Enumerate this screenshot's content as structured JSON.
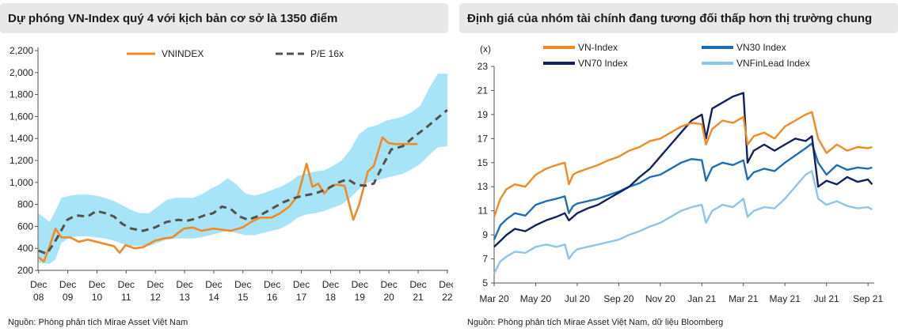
{
  "chart_data": [
    {
      "type": "line",
      "title": "Dự phóng VN-Index quý 4 với kịch bản cơ sở là 1350 điểm",
      "source": "Nguồn: Phòng phân tích Mirae Asset Việt Nam",
      "ylim": [
        200,
        2200
      ],
      "yticks": [
        200,
        400,
        600,
        800,
        1000,
        1200,
        1400,
        1600,
        1800,
        2000,
        2200
      ],
      "ytick_labels": [
        "200",
        "400",
        "600",
        "800",
        "1,000",
        "1,200",
        "1,400",
        "1,600",
        "1,800",
        "2,000",
        "2,200"
      ],
      "xlim": [
        2008.9,
        2022.95
      ],
      "xticks": [
        2008.92,
        2009.92,
        2010.92,
        2011.92,
        2012.92,
        2013.92,
        2014.92,
        2015.92,
        2016.92,
        2017.92,
        2018.92,
        2019.92,
        2020.92,
        2021.92,
        2022.92
      ],
      "xtick_labels": [
        [
          "Dec",
          "08"
        ],
        [
          "Dec",
          "09"
        ],
        [
          "Dec",
          "10"
        ],
        [
          "Dec",
          "11"
        ],
        [
          "Dec",
          "12"
        ],
        [
          "Dec",
          "13"
        ],
        [
          "Dec",
          "14"
        ],
        [
          "Dec",
          "15"
        ],
        [
          "Dec",
          "16"
        ],
        [
          "Dec",
          "17"
        ],
        [
          "Dec",
          "18"
        ],
        [
          "Dec",
          "19"
        ],
        [
          "Dec",
          "20"
        ],
        [
          "Dec",
          "21"
        ],
        [
          "Dec",
          "22"
        ]
      ],
      "grid": false,
      "legend": "top",
      "series": [
        {
          "name": "VNINDEX",
          "style": "solid",
          "color": "#f08a24",
          "x": [
            2008.92,
            2009.1,
            2009.3,
            2009.5,
            2009.7,
            2010.0,
            2010.3,
            2010.6,
            2010.9,
            2011.2,
            2011.5,
            2011.7,
            2011.9,
            2012.2,
            2012.5,
            2012.9,
            2013.2,
            2013.5,
            2013.9,
            2014.2,
            2014.5,
            2014.9,
            2015.2,
            2015.5,
            2015.9,
            2016.2,
            2016.5,
            2016.9,
            2017.2,
            2017.5,
            2017.8,
            2018.1,
            2018.3,
            2018.5,
            2018.7,
            2018.9,
            2019.1,
            2019.4,
            2019.7,
            2019.9,
            2020.2,
            2020.4,
            2020.7,
            2020.9,
            2021.1,
            2021.3,
            2021.6,
            2021.9
          ],
          "y": [
            320,
            280,
            420,
            580,
            500,
            500,
            460,
            480,
            460,
            440,
            420,
            360,
            430,
            400,
            410,
            470,
            490,
            500,
            580,
            590,
            560,
            580,
            570,
            560,
            590,
            640,
            680,
            680,
            720,
            780,
            880,
            1170,
            960,
            990,
            900,
            960,
            980,
            970,
            660,
            800,
            1100,
            1150,
            1410,
            1360,
            1350,
            1350,
            1350,
            1350
          ]
        },
        {
          "name": "P/E 16x",
          "style": "dashed",
          "color": "#555048",
          "x": [
            2008.92,
            2009.2,
            2009.5,
            2009.9,
            2010.2,
            2010.6,
            2010.9,
            2011.2,
            2011.5,
            2011.8,
            2012.1,
            2012.5,
            2012.9,
            2013.3,
            2013.7,
            2014.0,
            2014.3,
            2014.6,
            2014.9,
            2015.2,
            2015.5,
            2015.8,
            2016.1,
            2016.5,
            2016.9,
            2017.3,
            2017.7,
            2018.0,
            2018.4,
            2018.8,
            2019.2,
            2019.5,
            2019.8,
            2020.1,
            2020.4,
            2020.7,
            2021.0,
            2021.4,
            2021.8,
            2022.2,
            2022.6,
            2022.92
          ],
          "y": [
            380,
            350,
            470,
            660,
            700,
            690,
            740,
            720,
            690,
            620,
            580,
            560,
            590,
            640,
            660,
            650,
            670,
            700,
            720,
            780,
            760,
            690,
            660,
            700,
            760,
            820,
            860,
            880,
            900,
            940,
            1000,
            1030,
            980,
            970,
            990,
            1150,
            1300,
            1330,
            1420,
            1500,
            1590,
            1660
          ]
        }
      ],
      "band": {
        "name": "range",
        "color": "#a8e4f8",
        "x": [
          2008.92,
          2009.3,
          2009.5,
          2009.7,
          2010.0,
          2010.3,
          2010.6,
          2010.9,
          2011.2,
          2011.5,
          2011.8,
          2012.1,
          2012.4,
          2012.7,
          2013.0,
          2013.3,
          2013.6,
          2013.9,
          2014.2,
          2014.5,
          2014.8,
          2015.1,
          2015.4,
          2015.7,
          2016.0,
          2016.3,
          2016.6,
          2016.9,
          2017.2,
          2017.5,
          2017.8,
          2018.1,
          2018.4,
          2018.7,
          2019.0,
          2019.3,
          2019.6,
          2019.9,
          2020.2,
          2020.5,
          2020.8,
          2021.1,
          2021.4,
          2021.7,
          2022.0,
          2022.3,
          2022.6,
          2022.92
        ],
        "upper": [
          720,
          640,
          740,
          860,
          880,
          890,
          890,
          880,
          860,
          830,
          790,
          750,
          720,
          720,
          780,
          840,
          860,
          860,
          860,
          890,
          940,
          980,
          1040,
          980,
          900,
          880,
          900,
          930,
          960,
          1000,
          1060,
          1080,
          1100,
          1110,
          1150,
          1200,
          1300,
          1440,
          1500,
          1520,
          1560,
          1580,
          1600,
          1640,
          1700,
          1860,
          1990,
          1990
        ],
        "lower": [
          270,
          260,
          300,
          450,
          500,
          510,
          510,
          500,
          490,
          470,
          440,
          420,
          420,
          420,
          450,
          480,
          490,
          490,
          490,
          500,
          520,
          540,
          560,
          540,
          520,
          520,
          540,
          560,
          580,
          620,
          680,
          710,
          720,
          740,
          770,
          800,
          860,
          940,
          1000,
          1020,
          1040,
          1060,
          1080,
          1120,
          1170,
          1250,
          1320,
          1330
        ]
      }
    },
    {
      "type": "line",
      "title": "Định giá của nhóm tài chính đang tương đối thấp hơn thị trường chung",
      "source": "Nguồn: Phòng phân tích Mirae Asset Việt Nam, dữ liệu Bloomberg",
      "ylabel": "(x)",
      "ylim": [
        5,
        23
      ],
      "yticks": [
        5,
        7,
        9,
        11,
        13,
        15,
        17,
        19,
        21,
        23
      ],
      "xlim": [
        0,
        18.3
      ],
      "xticks": [
        0,
        2,
        4,
        6,
        8,
        10,
        12,
        14,
        16,
        18
      ],
      "xtick_labels": [
        "Mar 20",
        "May 20",
        "Jul 20",
        "Sep 20",
        "Nov 20",
        "Jan 21",
        "Mar 21",
        "May 21",
        "Jul 21",
        "Sep 21"
      ],
      "grid": false,
      "legend": "top",
      "series": [
        {
          "name": "VN-Index",
          "color": "#f08a24",
          "x": [
            0,
            0.3,
            0.6,
            1.0,
            1.5,
            2.0,
            2.5,
            3.0,
            3.4,
            3.6,
            3.8,
            4.0,
            4.5,
            5.0,
            5.5,
            6.0,
            6.5,
            7.0,
            7.5,
            8.0,
            8.5,
            9.0,
            9.5,
            10.0,
            10.2,
            10.5,
            11.0,
            11.5,
            12.0,
            12.2,
            12.5,
            13.0,
            13.5,
            14.0,
            14.5,
            15.0,
            15.3,
            15.6,
            16.0,
            16.5,
            17.0,
            17.5,
            18.0,
            18.2
          ],
          "y": [
            10.5,
            12.0,
            12.8,
            13.2,
            13.0,
            14.0,
            14.5,
            14.8,
            15.0,
            13.2,
            14.0,
            14.2,
            14.5,
            14.8,
            15.2,
            15.5,
            16.0,
            16.3,
            16.8,
            17.0,
            17.5,
            18.0,
            18.3,
            18.2,
            16.5,
            17.8,
            18.5,
            18.3,
            18.8,
            16.5,
            17.2,
            17.5,
            17.0,
            18.0,
            18.5,
            19.0,
            19.2,
            17.0,
            15.8,
            16.5,
            16.0,
            16.3,
            16.2,
            16.3
          ]
        },
        {
          "name": "VN30 Index",
          "color": "#1f6db5",
          "x": [
            0,
            0.3,
            0.6,
            1.0,
            1.5,
            2.0,
            2.5,
            3.0,
            3.4,
            3.6,
            3.8,
            4.0,
            4.5,
            5.0,
            5.5,
            6.0,
            6.5,
            7.0,
            7.5,
            8.0,
            8.5,
            9.0,
            9.5,
            10.0,
            10.2,
            10.5,
            11.0,
            11.5,
            12.0,
            12.2,
            12.5,
            13.0,
            13.5,
            14.0,
            14.5,
            15.0,
            15.3,
            15.6,
            16.0,
            16.5,
            17.0,
            17.5,
            18.0,
            18.2
          ],
          "y": [
            8.6,
            9.8,
            10.3,
            10.8,
            10.6,
            11.5,
            11.8,
            12.0,
            12.2,
            10.8,
            11.4,
            11.6,
            11.8,
            12.0,
            12.3,
            12.6,
            13.0,
            13.3,
            13.8,
            14.0,
            14.5,
            15.0,
            15.3,
            15.2,
            13.5,
            14.6,
            15.0,
            14.8,
            15.2,
            13.6,
            14.2,
            14.5,
            14.3,
            15.0,
            15.6,
            16.2,
            16.6,
            15.0,
            14.0,
            14.8,
            14.4,
            14.6,
            14.5,
            14.6
          ]
        },
        {
          "name": "VN70 Index",
          "color": "#12225e",
          "x": [
            0,
            0.3,
            0.6,
            1.0,
            1.5,
            2.0,
            2.5,
            3.0,
            3.4,
            3.6,
            3.8,
            4.0,
            4.5,
            5.0,
            5.5,
            6.0,
            6.5,
            7.0,
            7.5,
            8.0,
            8.5,
            9.0,
            9.5,
            10.0,
            10.2,
            10.5,
            11.0,
            11.5,
            12.0,
            12.2,
            12.5,
            13.0,
            13.5,
            14.0,
            14.5,
            15.0,
            15.3,
            15.6,
            16.0,
            16.5,
            17.0,
            17.5,
            18.0,
            18.2
          ],
          "y": [
            8.0,
            8.5,
            9.0,
            9.5,
            9.3,
            9.8,
            10.2,
            10.5,
            10.8,
            10.2,
            10.5,
            10.8,
            11.2,
            11.5,
            12.0,
            12.5,
            13.0,
            13.8,
            14.5,
            15.5,
            16.5,
            17.5,
            18.5,
            19.0,
            17.0,
            19.5,
            20.0,
            20.5,
            20.8,
            15.0,
            16.0,
            16.5,
            16.0,
            16.5,
            17.0,
            16.8,
            17.2,
            13.0,
            13.5,
            13.2,
            13.8,
            13.4,
            13.6,
            13.2
          ]
        },
        {
          "name": "VNFinLead Index",
          "color": "#8fc6e8",
          "x": [
            0,
            0.3,
            0.6,
            1.0,
            1.5,
            2.0,
            2.5,
            3.0,
            3.4,
            3.6,
            3.8,
            4.0,
            4.5,
            5.0,
            5.5,
            6.0,
            6.5,
            7.0,
            7.5,
            8.0,
            8.5,
            9.0,
            9.5,
            10.0,
            10.2,
            10.5,
            11.0,
            11.5,
            12.0,
            12.2,
            12.5,
            13.0,
            13.5,
            14.0,
            14.5,
            15.0,
            15.3,
            15.6,
            16.0,
            16.5,
            17.0,
            17.5,
            18.0,
            18.2
          ],
          "y": [
            5.8,
            6.8,
            7.2,
            7.6,
            7.5,
            8.0,
            8.2,
            8.0,
            8.2,
            7.0,
            7.5,
            7.8,
            8.0,
            8.2,
            8.4,
            8.6,
            9.0,
            9.3,
            9.7,
            10.0,
            10.5,
            11.0,
            11.3,
            11.5,
            10.0,
            11.0,
            11.5,
            11.3,
            12.0,
            10.5,
            11.0,
            11.3,
            11.2,
            12.0,
            13.0,
            14.0,
            14.3,
            12.0,
            11.5,
            11.8,
            11.4,
            11.2,
            11.3,
            11.1
          ]
        }
      ]
    }
  ]
}
